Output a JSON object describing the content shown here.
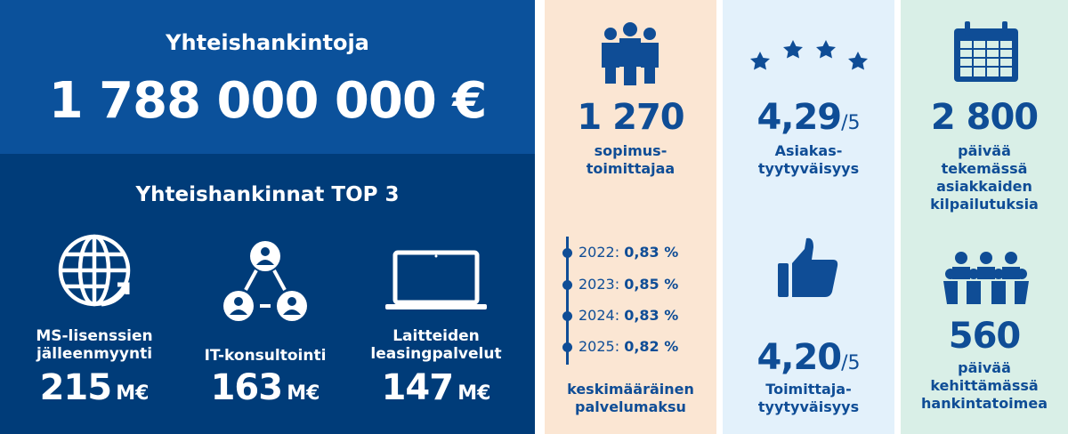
{
  "left": {
    "title": "Yhteishankintoja",
    "total": "1 788 000 000 €",
    "top3_title": "Yhteishankinnat TOP 3",
    "items": [
      {
        "label_line1": "MS-lisenssien",
        "label_line2": "jälleenmyynti",
        "value": "215",
        "unit": "M€",
        "icon": "globe-refresh-icon"
      },
      {
        "label_line1": "IT-konsultointi",
        "label_line2": "",
        "value": "163",
        "unit": "M€",
        "icon": "network-people-icon"
      },
      {
        "label_line1": "Laitteiden",
        "label_line2": "leasingpalvelut",
        "value": "147",
        "unit": "M€",
        "icon": "laptop-icon"
      }
    ]
  },
  "suppliers": {
    "icon": "people-group-icon",
    "value": "1 270",
    "label_line1": "sopimus-",
    "label_line2": "toimittajaa"
  },
  "fees": {
    "rows": [
      {
        "year": "2022:",
        "value": "0,83 %"
      },
      {
        "year": "2023:",
        "value": "0,85 %"
      },
      {
        "year": "2024:",
        "value": "0,83 %"
      },
      {
        "year": "2025:",
        "value": "0,82 %"
      }
    ],
    "label_line1": "keskimääräinen",
    "label_line2": "palvelumaksu"
  },
  "customer_sat": {
    "icon": "stars-icon",
    "value": "4,29",
    "scale": "/5",
    "label_line1": "Asiakas-",
    "label_line2": "tyytyväisyys"
  },
  "supplier_sat": {
    "icon": "thumbs-up-icon",
    "value": "4,20",
    "scale": "/5",
    "label_line1": "Toimittaja-",
    "label_line2": "tyytyväisyys"
  },
  "days_tendering": {
    "icon": "calendar-icon",
    "value": "2 800",
    "label_line1": "päivää",
    "label_line2": "tekemässä",
    "label_line3": "asiakkaiden",
    "label_line4": "kilpailutuksia"
  },
  "days_developing": {
    "icon": "team-group-icon",
    "value": "560",
    "label_line1": "päivää",
    "label_line2": "kehittämässä",
    "label_line3": "hankintatoimea"
  },
  "colors": {
    "left_top": "#0b519b",
    "left_bottom": "#003c79",
    "col_a": "#fbe6d3",
    "col_b": "#e3f1fb",
    "col_c": "#d9efe7",
    "accent": "#0f4d96"
  }
}
